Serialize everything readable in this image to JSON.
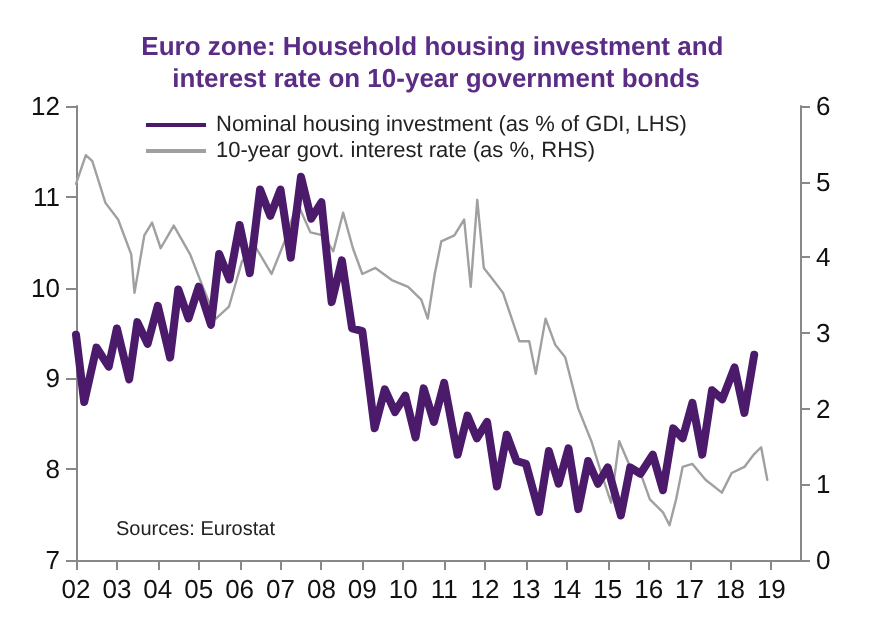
{
  "chart_data": {
    "type": "line",
    "title": "Euro zone: Household housing investment and interest rate on 10-year government bonds",
    "xlim": [
      2002,
      2019.7
    ],
    "xticks": [
      {
        "value": 2002,
        "label": "02"
      },
      {
        "value": 2003,
        "label": "03"
      },
      {
        "value": 2004,
        "label": "04"
      },
      {
        "value": 2005,
        "label": "05"
      },
      {
        "value": 2006,
        "label": "06"
      },
      {
        "value": 2007,
        "label": "07"
      },
      {
        "value": 2008,
        "label": "08"
      },
      {
        "value": 2009,
        "label": "09"
      },
      {
        "value": 2010,
        "label": "10"
      },
      {
        "value": 2011,
        "label": "11"
      },
      {
        "value": 2012,
        "label": "12"
      },
      {
        "value": 2013,
        "label": "13"
      },
      {
        "value": 2014,
        "label": "14"
      },
      {
        "value": 2015,
        "label": "15"
      },
      {
        "value": 2016,
        "label": "16"
      },
      {
        "value": 2017,
        "label": "17"
      },
      {
        "value": 2018,
        "label": "18"
      },
      {
        "value": 2019,
        "label": "19"
      }
    ],
    "ylim": [
      7,
      12
    ],
    "yticks": [
      7,
      8,
      9,
      10,
      11,
      12
    ],
    "y2lim": [
      0,
      6
    ],
    "y2ticks": [
      0,
      1,
      2,
      3,
      4,
      5,
      6
    ],
    "grid": false,
    "legend": "top left",
    "marker": "none",
    "line_style": "solid",
    "annotations": [
      "Sources: Eurostat"
    ],
    "series": [
      {
        "name": "Nominal housing investment (as % of GDI, LHS)",
        "color": "#4b1a6b",
        "x": [
          2002.0,
          2002.2,
          2002.5,
          2002.8,
          2003.0,
          2003.3,
          2003.5,
          2003.75,
          2004.0,
          2004.3,
          2004.5,
          2004.75,
          2005.0,
          2005.3,
          2005.5,
          2005.75,
          2006.0,
          2006.25,
          2006.5,
          2006.75,
          2007.0,
          2007.25,
          2007.5,
          2007.75,
          2008.0,
          2008.25,
          2008.5,
          2008.75,
          2009.0,
          2009.3,
          2009.55,
          2009.8,
          2010.05,
          2010.3,
          2010.5,
          2010.75,
          2011.0,
          2011.33,
          2011.57,
          2011.8,
          2012.05,
          2012.29,
          2012.53,
          2012.77,
          2013.0,
          2013.32,
          2013.56,
          2013.8,
          2014.04,
          2014.28,
          2014.52,
          2014.76,
          2015.0,
          2015.32,
          2015.55,
          2015.8,
          2016.1,
          2016.35,
          2016.6,
          2016.83,
          2017.07,
          2017.31,
          2017.55,
          2017.8,
          2018.1,
          2018.34,
          2018.58
        ],
        "values": [
          9.48,
          8.74,
          9.34,
          9.13,
          9.55,
          8.99,
          9.62,
          9.38,
          9.8,
          9.23,
          9.98,
          9.66,
          10.01,
          9.59,
          10.37,
          10.09,
          10.69,
          10.16,
          11.08,
          10.79,
          11.08,
          10.33,
          11.22,
          10.76,
          10.94,
          9.84,
          10.3,
          9.55,
          9.52,
          8.45,
          8.88,
          8.63,
          8.81,
          8.35,
          8.89,
          8.52,
          8.95,
          8.16,
          8.59,
          8.34,
          8.52,
          7.81,
          8.38,
          8.09,
          8.06,
          7.53,
          8.2,
          7.84,
          8.23,
          7.56,
          8.09,
          7.84,
          8.02,
          7.49,
          8.02,
          7.95,
          8.16,
          7.77,
          8.45,
          8.34,
          8.73,
          8.16,
          8.87,
          8.77,
          9.12,
          8.62,
          9.26
        ]
      },
      {
        "name": "10-year govt. interest rate (as %, RHS)",
        "color": "#a0a0a0",
        "axis": "y2",
        "x": [
          2002.0,
          2002.24,
          2002.4,
          2002.72,
          2003.03,
          2003.35,
          2003.43,
          2003.67,
          2003.86,
          2004.07,
          2004.39,
          2004.79,
          2005.1,
          2005.42,
          2005.74,
          2006.06,
          2006.41,
          2006.78,
          2007.1,
          2007.41,
          2007.73,
          2008.05,
          2008.29,
          2008.53,
          2008.77,
          2009.0,
          2009.32,
          2009.72,
          2010.12,
          2010.44,
          2010.6,
          2010.77,
          2010.93,
          2011.25,
          2011.49,
          2011.65,
          2011.81,
          2011.97,
          2012.2,
          2012.44,
          2012.84,
          2013.08,
          2013.24,
          2013.48,
          2013.72,
          2013.96,
          2014.28,
          2014.6,
          2014.84,
          2015.08,
          2015.28,
          2015.55,
          2015.8,
          2016.03,
          2016.35,
          2016.51,
          2016.67,
          2016.83,
          2017.07,
          2017.39,
          2017.79,
          2018.03,
          2018.34,
          2018.58,
          2018.75,
          2018.9
        ],
        "values": [
          4.97,
          5.35,
          5.27,
          4.72,
          4.5,
          4.04,
          3.53,
          4.29,
          4.46,
          4.12,
          4.42,
          4.04,
          3.61,
          3.19,
          3.35,
          3.95,
          4.12,
          3.78,
          4.21,
          4.72,
          4.33,
          4.29,
          4.08,
          4.59,
          4.12,
          3.78,
          3.86,
          3.7,
          3.61,
          3.44,
          3.19,
          3.78,
          4.21,
          4.29,
          4.5,
          3.61,
          4.76,
          3.86,
          3.7,
          3.53,
          2.89,
          2.89,
          2.46,
          3.19,
          2.84,
          2.68,
          2.0,
          1.57,
          1.15,
          0.76,
          1.57,
          1.23,
          1.15,
          0.8,
          0.63,
          0.46,
          0.8,
          1.23,
          1.27,
          1.06,
          0.89,
          1.15,
          1.23,
          1.4,
          1.49,
          1.06
        ]
      }
    ]
  }
}
